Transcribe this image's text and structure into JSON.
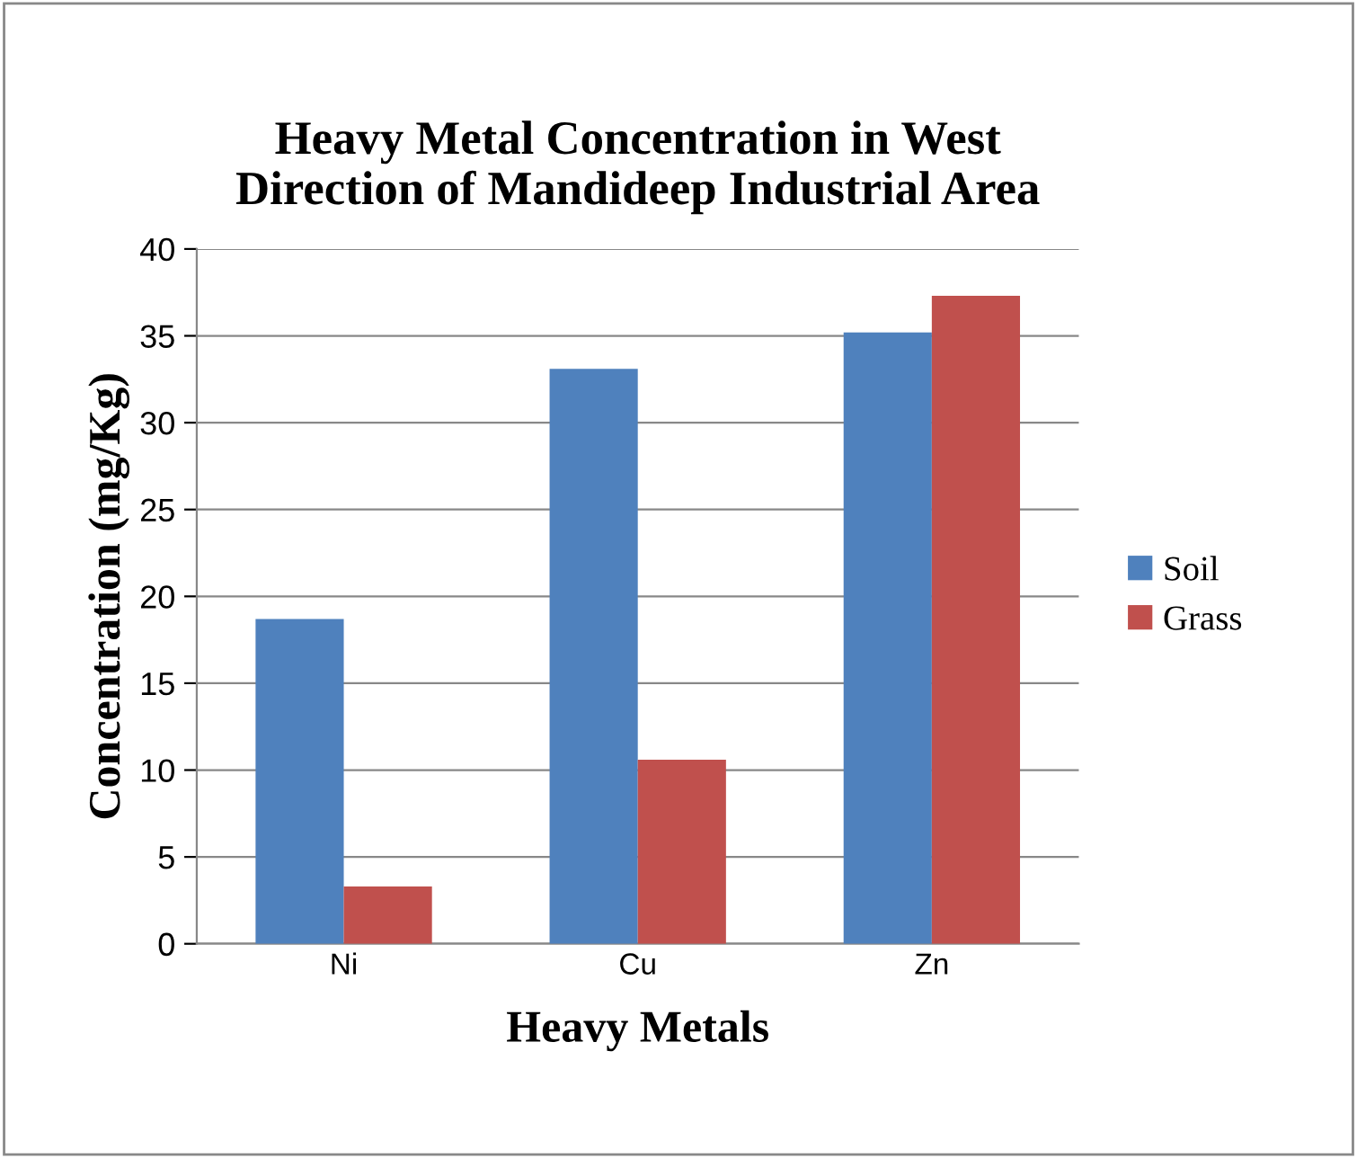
{
  "chart_data": {
    "type": "bar",
    "title": "Heavy Metal Concentration in West\nDirection of Mandideep Industrial Area",
    "xlabel": "Heavy Metals",
    "ylabel": "Concentration (mg/Kg)",
    "categories": [
      "Ni",
      "Cu",
      "Zn"
    ],
    "series": [
      {
        "name": "Soil",
        "color": "#4f81bd",
        "values": [
          18.7,
          33.1,
          35.2
        ]
      },
      {
        "name": "Grass",
        "color": "#c0504d",
        "values": [
          3.3,
          10.6,
          37.3
        ]
      }
    ],
    "ylim": [
      0,
      40
    ],
    "yticks": [
      0,
      5,
      10,
      15,
      20,
      25,
      30,
      35,
      40
    ],
    "grid": "y",
    "legend": "right"
  }
}
